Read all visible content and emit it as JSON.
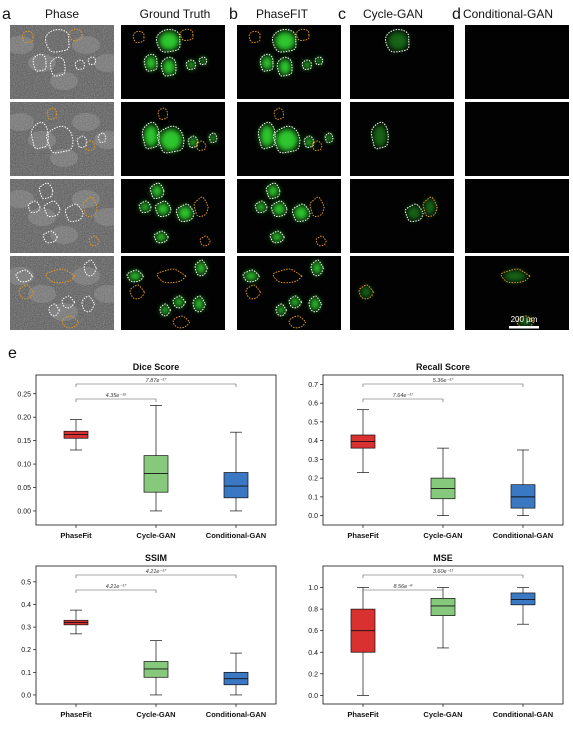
{
  "figure": {
    "panels": [
      {
        "letter": "a"
      },
      {
        "letter": "b"
      },
      {
        "letter": "c"
      },
      {
        "letter": "d"
      },
      {
        "letter": "e"
      }
    ],
    "columns": [
      "Phase",
      "Ground Truth",
      "PhaseFIT",
      "Cycle-GAN",
      "Conditional-GAN"
    ],
    "scale_bar": "200 µm",
    "colors": {
      "fluorescence": "#33dd33",
      "outline_white": "#ffffff",
      "outline_orange": "#e69a1e",
      "phasefit": "#d93030",
      "cycle_gan": "#87c97c",
      "conditional_gan": "#3a78c3"
    }
  },
  "chart_data": [
    {
      "type": "box",
      "title": "Dice Score",
      "categories": [
        "PhaseFit",
        "Cycle-GAN",
        "Conditional-GAN"
      ],
      "ylim": [
        -0.03,
        0.29
      ],
      "yticks": [
        "0.00",
        "0.05",
        "0.10",
        "0.15",
        "0.20",
        "0.25"
      ],
      "boxes": [
        {
          "name": "PhaseFit",
          "whisker_low": 0.13,
          "q1": 0.155,
          "median": 0.163,
          "q3": 0.17,
          "whisker_high": 0.195
        },
        {
          "name": "Cycle-GAN",
          "whisker_low": 0.0,
          "q1": 0.04,
          "median": 0.08,
          "q3": 0.118,
          "whisker_high": 0.225
        },
        {
          "name": "Conditional-GAN",
          "whisker_low": 0.0,
          "q1": 0.028,
          "median": 0.053,
          "q3": 0.082,
          "whisker_high": 0.168
        }
      ],
      "brackets": [
        {
          "from": "PhaseFit",
          "to": "Conditional-GAN",
          "label": "7.87e⁻¹⁷"
        },
        {
          "from": "PhaseFit",
          "to": "Cycle-GAN",
          "label": "4.35e⁻¹⁵"
        }
      ]
    },
    {
      "type": "box",
      "title": "Recall Score",
      "categories": [
        "PhaseFit",
        "Cycle-GAN",
        "Conditional-GAN"
      ],
      "ylim": [
        -0.05,
        0.75
      ],
      "yticks": [
        "0.0",
        "0.1",
        "0.2",
        "0.3",
        "0.4",
        "0.5",
        "0.6",
        "0.7"
      ],
      "boxes": [
        {
          "name": "PhaseFit",
          "whisker_low": 0.23,
          "q1": 0.36,
          "median": 0.395,
          "q3": 0.43,
          "whisker_high": 0.565
        },
        {
          "name": "Cycle-GAN",
          "whisker_low": 0.0,
          "q1": 0.09,
          "median": 0.145,
          "q3": 0.2,
          "whisker_high": 0.36
        },
        {
          "name": "Conditional-GAN",
          "whisker_low": 0.0,
          "q1": 0.04,
          "median": 0.1,
          "q3": 0.165,
          "whisker_high": 0.35
        }
      ],
      "brackets": [
        {
          "from": "PhaseFit",
          "to": "Conditional-GAN",
          "label": "5.36e⁻¹⁷"
        },
        {
          "from": "PhaseFit",
          "to": "Cycle-GAN",
          "label": "7.64e⁻¹⁷"
        }
      ]
    },
    {
      "type": "box",
      "title": "SSIM",
      "categories": [
        "PhaseFit",
        "Cycle-GAN",
        "Conditional-GAN"
      ],
      "ylim": [
        -0.04,
        0.57
      ],
      "yticks": [
        "0.0",
        "0.1",
        "0.2",
        "0.3",
        "0.4",
        "0.5"
      ],
      "boxes": [
        {
          "name": "PhaseFit",
          "whisker_low": 0.27,
          "q1": 0.31,
          "median": 0.32,
          "q3": 0.33,
          "whisker_high": 0.375
        },
        {
          "name": "Cycle-GAN",
          "whisker_low": 0.0,
          "q1": 0.078,
          "median": 0.115,
          "q3": 0.148,
          "whisker_high": 0.24
        },
        {
          "name": "Conditional-GAN",
          "whisker_low": 0.0,
          "q1": 0.045,
          "median": 0.072,
          "q3": 0.1,
          "whisker_high": 0.185
        }
      ],
      "brackets": [
        {
          "from": "PhaseFit",
          "to": "Conditional-GAN",
          "label": "4.21e⁻¹⁷"
        },
        {
          "from": "PhaseFit",
          "to": "Cycle-GAN",
          "label": "4.21e⁻¹⁷"
        }
      ]
    },
    {
      "type": "box",
      "title": "MSE",
      "categories": [
        "PhaseFit",
        "Cycle-GAN",
        "Conditional-GAN"
      ],
      "ylim": [
        -0.08,
        1.2
      ],
      "yticks": [
        "0.0",
        "0.2",
        "0.4",
        "0.6",
        "0.8",
        "1.0"
      ],
      "boxes": [
        {
          "name": "PhaseFit",
          "whisker_low": 0.0,
          "q1": 0.4,
          "median": 0.6,
          "q3": 0.8,
          "whisker_high": 1.0
        },
        {
          "name": "Cycle-GAN",
          "whisker_low": 0.44,
          "q1": 0.74,
          "median": 0.83,
          "q3": 0.9,
          "whisker_high": 1.0
        },
        {
          "name": "Conditional-GAN",
          "whisker_low": 0.66,
          "q1": 0.84,
          "median": 0.89,
          "q3": 0.95,
          "whisker_high": 1.0
        }
      ],
      "brackets": [
        {
          "from": "PhaseFit",
          "to": "Conditional-GAN",
          "label": "3.60e⁻¹¹"
        },
        {
          "from": "PhaseFit",
          "to": "Cycle-GAN",
          "label": "8.56e⁻⁸"
        }
      ]
    }
  ]
}
